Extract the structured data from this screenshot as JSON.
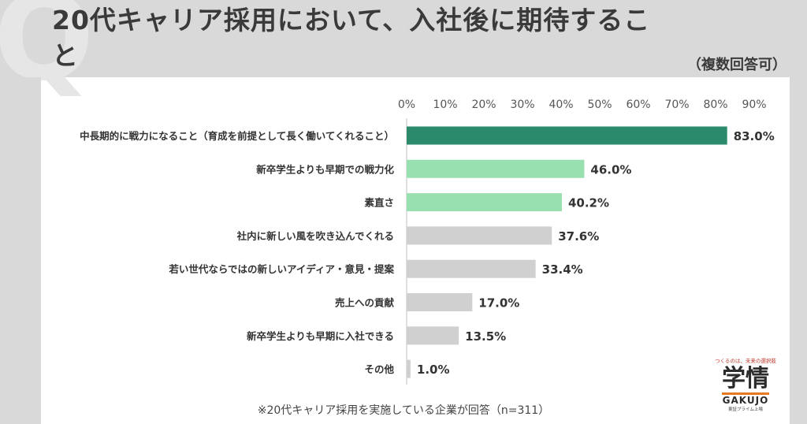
{
  "header": {
    "title": "20代キャリア採用において、入社後に期待すること",
    "subtitle": "（複数回答可）"
  },
  "chart_data": {
    "type": "bar",
    "orientation": "horizontal",
    "title": "20代キャリア採用において、入社後に期待すること",
    "categories": [
      "中長期的に戦力になること（育成を前提として長く働いてくれること）",
      "新卒学生よりも早期での戦力化",
      "素直さ",
      "社内に新しい風を吹き込んでくれる",
      "若い世代ならではの新しいアイディア・意見・提案",
      "売上への貢献",
      "新卒学生よりも早期に入社できる",
      "その他"
    ],
    "values": [
      83.0,
      46.0,
      40.2,
      37.6,
      33.4,
      17.0,
      13.5,
      1.0
    ],
    "value_labels": [
      "83.0%",
      "46.0%",
      "40.2%",
      "37.6%",
      "33.4%",
      "17.0%",
      "13.5%",
      "1.0%"
    ],
    "bar_colors": [
      "#2b8a6c",
      "#99e0b0",
      "#99e0b0",
      "#d0d0d0",
      "#d0d0d0",
      "#d0d0d0",
      "#d0d0d0",
      "#d0d0d0"
    ],
    "xlim": [
      0,
      90
    ],
    "x_ticks": [
      "0%",
      "10%",
      "20%",
      "30%",
      "40%",
      "50%",
      "60%",
      "70%",
      "80%",
      "90%"
    ],
    "grid": false,
    "legend": "none"
  },
  "footnote": "※20代キャリア採用を実施している企業が回答（n=311）",
  "logo": {
    "tagline": "つくるのは、未来の選択肢",
    "main": "学情",
    "en": "GAKUJO",
    "small": "東証プライム上場"
  },
  "colors": {
    "header_band": "#d9d9d9",
    "title_text": "#3a3a3a",
    "highlight_dark": "#2b8a6c",
    "highlight_light": "#99e0b0",
    "default_bar": "#d0d0d0"
  }
}
